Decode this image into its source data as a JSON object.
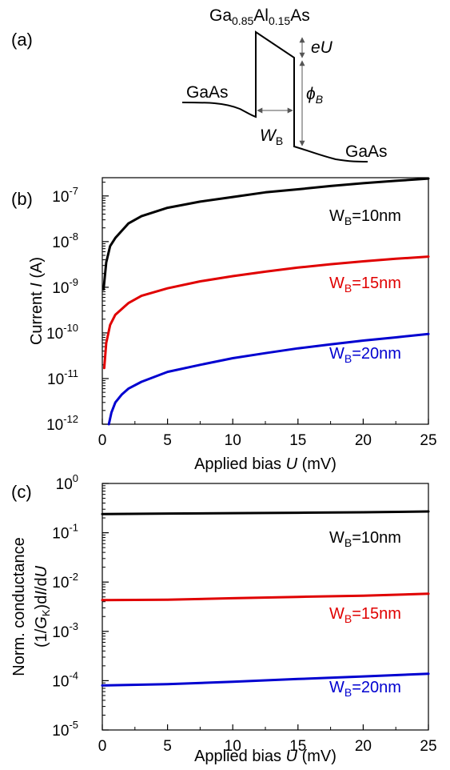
{
  "panel_a": {
    "label": "(a)",
    "material_top": {
      "base": "Ga",
      "sub1": "0.85",
      "mid": "Al",
      "sub2": "0.15",
      "end": "As"
    },
    "material_left": "GaAs",
    "material_right": "GaAs",
    "eU": "eU",
    "phi": {
      "base": "ϕ",
      "sub": "B"
    },
    "width": {
      "base": "W",
      "sub": "B"
    }
  },
  "chart_data": [
    {
      "id": "b",
      "type": "line",
      "panel_label": "(b)",
      "xlabel": {
        "pre": "Applied bias ",
        "var": "U",
        "post": " (mV)"
      },
      "ylabel": {
        "pre": "Current ",
        "var": "I",
        "post": " (A)"
      },
      "x_ticks": [
        "0",
        "5",
        "10",
        "15",
        "20",
        "25"
      ],
      "y_ticks": [
        {
          "base": "10",
          "exp": "-12"
        },
        {
          "base": "10",
          "exp": "-11"
        },
        {
          "base": "10",
          "exp": "-10"
        },
        {
          "base": "10",
          "exp": "-9"
        },
        {
          "base": "10",
          "exp": "-8"
        },
        {
          "base": "10",
          "exp": "-7"
        }
      ],
      "xlim": [
        0,
        25
      ],
      "ylim_log10": [
        -12,
        -6.6
      ],
      "yscale": "log",
      "series": [
        {
          "label": {
            "base": "W",
            "sub": "B",
            "rest": "=10nm"
          },
          "color": "#000000",
          "x": [
            0.1,
            0.3,
            0.6,
            1,
            2,
            3,
            5,
            7.5,
            10,
            12.5,
            15,
            17.5,
            20,
            22.5,
            25
          ],
          "y": [
            9e-10,
            3.5e-09,
            8e-09,
            1.2e-08,
            2.5e-08,
            3.6e-08,
            5.5e-08,
            7.5e-08,
            9.5e-08,
            1.2e-07,
            1.4e-07,
            1.65e-07,
            1.9e-07,
            2.15e-07,
            2.4e-07
          ]
        },
        {
          "label": {
            "base": "W",
            "sub": "B",
            "rest": "=15nm"
          },
          "color": "#e00000",
          "x": [
            0.15,
            0.3,
            0.6,
            1,
            2,
            3,
            5,
            7.5,
            10,
            12.5,
            15,
            17.5,
            20,
            22.5,
            25
          ],
          "y": [
            1.7e-11,
            6e-11,
            1.5e-10,
            2.5e-10,
            4.5e-10,
            6.5e-10,
            9.5e-10,
            1.35e-09,
            1.75e-09,
            2.2e-09,
            2.7e-09,
            3.2e-09,
            3.7e-09,
            4.2e-09,
            4.7e-09
          ]
        },
        {
          "label": {
            "base": "W",
            "sub": "B",
            "rest": "=20nm"
          },
          "color": "#0000d0",
          "x": [
            0.5,
            0.7,
            1,
            1.5,
            2,
            3,
            5,
            7.5,
            10,
            12.5,
            15,
            17.5,
            20,
            22.5,
            25
          ],
          "y": [
            1e-12,
            1.8e-12,
            3e-12,
            4.5e-12,
            6e-12,
            8.5e-12,
            1.4e-11,
            2e-11,
            2.8e-11,
            3.6e-11,
            4.6e-11,
            5.6e-11,
            6.8e-11,
            8e-11,
            9.5e-11
          ]
        }
      ]
    },
    {
      "id": "c",
      "type": "line",
      "panel_label": "(c)",
      "xlabel": {
        "pre": "Applied bias ",
        "var": "U",
        "post": " (mV)"
      },
      "ylabel_line1": "Norm. conductance",
      "ylabel_line2": {
        "a": "(1/",
        "g": "G",
        "k": "K",
        "b": ")d",
        "i": "I",
        "c": "/d",
        "u": "U"
      },
      "x_ticks": [
        "0",
        "5",
        "10",
        "15",
        "20",
        "25"
      ],
      "y_ticks": [
        {
          "base": "10",
          "exp": "-5"
        },
        {
          "base": "10",
          "exp": "-4"
        },
        {
          "base": "10",
          "exp": "-3"
        },
        {
          "base": "10",
          "exp": "-2"
        },
        {
          "base": "10",
          "exp": "-1"
        },
        {
          "base": "10",
          "exp": "0"
        }
      ],
      "xlim": [
        0,
        25
      ],
      "ylim_log10": [
        -5,
        0
      ],
      "yscale": "log",
      "series": [
        {
          "label": {
            "base": "W",
            "sub": "B",
            "rest": "=10nm"
          },
          "color": "#000000",
          "x": [
            0,
            5,
            10,
            15,
            20,
            25
          ],
          "y": [
            0.24,
            0.245,
            0.25,
            0.255,
            0.26,
            0.27
          ]
        },
        {
          "label": {
            "base": "W",
            "sub": "B",
            "rest": "=15nm"
          },
          "color": "#e00000",
          "x": [
            0,
            5,
            10,
            15,
            20,
            25
          ],
          "y": [
            0.0043,
            0.0044,
            0.0047,
            0.005,
            0.0053,
            0.0058
          ]
        },
        {
          "label": {
            "base": "W",
            "sub": "B",
            "rest": "=20nm"
          },
          "color": "#0000d0",
          "x": [
            0,
            5,
            10,
            15,
            20,
            25
          ],
          "y": [
            8e-05,
            8.5e-05,
            9.5e-05,
            0.000108,
            0.000122,
            0.000138
          ]
        }
      ]
    }
  ]
}
